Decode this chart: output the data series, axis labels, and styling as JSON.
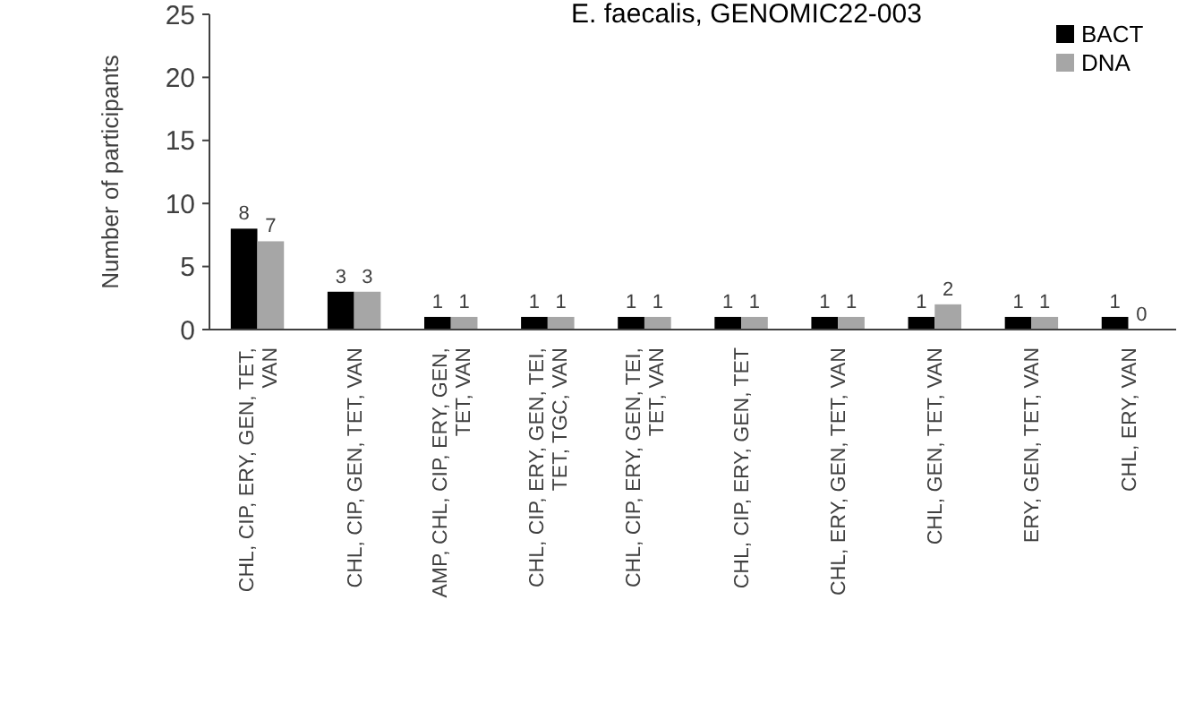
{
  "chart_data": {
    "type": "bar",
    "title": "E. faecalis, GENOMIC22-003",
    "ylabel": "Number of participants",
    "categories": [
      "CHL, CIP, ERY, GEN, TET, VAN",
      "CHL, CIP, GEN, TET, VAN",
      "AMP, CHL, CIP, ERY, GEN, TET, VAN",
      "CHL, CIP, ERY, GEN, TEI, TET, TGC, VAN",
      "CHL, CIP, ERY, GEN, TEI, TET, VAN",
      "CHL, CIP, ERY, GEN, TET",
      "CHL, ERY, GEN, TET, VAN",
      "CHL, GEN, TET, VAN",
      "ERY, GEN, TET, VAN",
      "CHL, ERY, VAN"
    ],
    "series": [
      {
        "name": "BACT",
        "color": "#000000",
        "values": [
          8,
          3,
          1,
          1,
          1,
          1,
          1,
          1,
          1,
          1
        ]
      },
      {
        "name": "DNA",
        "color": "#a6a6a6",
        "values": [
          7,
          3,
          1,
          1,
          1,
          1,
          1,
          2,
          1,
          0
        ]
      }
    ],
    "ylim": [
      0,
      25
    ],
    "yticks": [
      0,
      5,
      10,
      15,
      20,
      25
    ],
    "grid": false,
    "legend": "top right",
    "data_labels": true
  }
}
